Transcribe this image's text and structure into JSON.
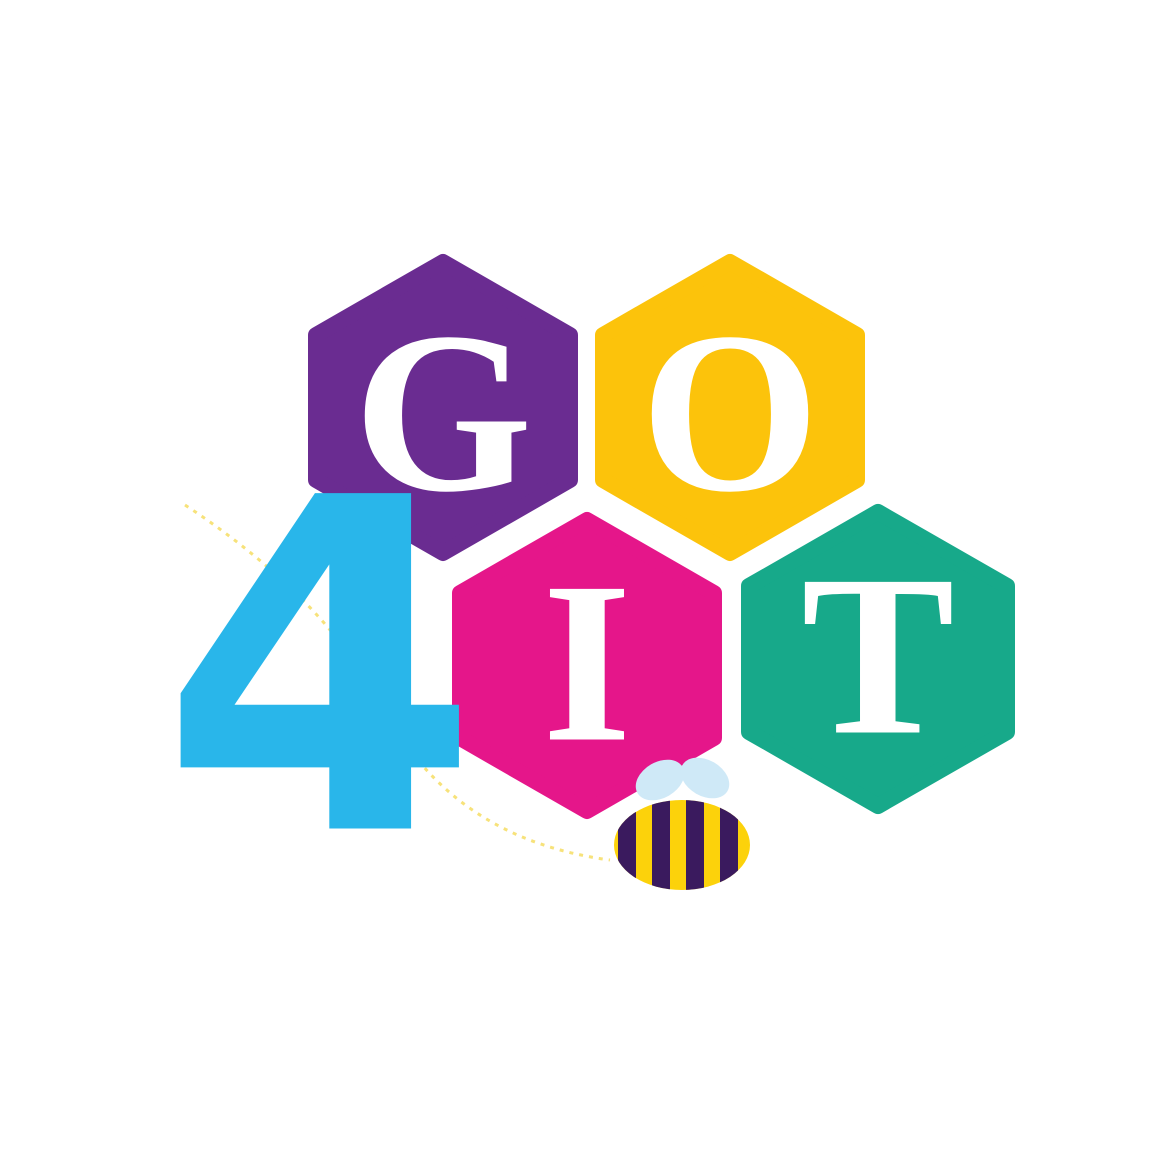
{
  "logo": {
    "letters": [
      "G",
      "O",
      "4",
      "I",
      "T"
    ]
  }
}
